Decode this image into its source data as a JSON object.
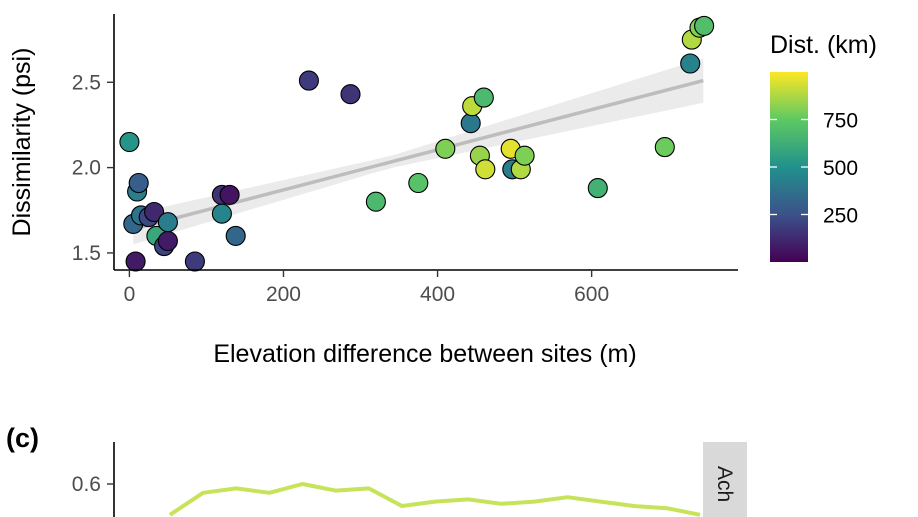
{
  "chart_data": [
    {
      "type": "scatter",
      "xlabel": "Elevation difference between sites (m)",
      "ylabel": "Dissimilarity (psi)",
      "xlim": [
        -20,
        790
      ],
      "ylim": [
        1.4,
        2.9
      ],
      "x_ticks": [
        0,
        200,
        400,
        600
      ],
      "x_tick_labels": [
        "0",
        "200",
        "400",
        "600"
      ],
      "y_ticks": [
        1.5,
        2.0,
        2.5
      ],
      "y_tick_labels": [
        "1.5",
        "2.0",
        "2.5"
      ],
      "grid": false,
      "trend": {
        "type": "linear",
        "x_range": [
          5,
          745
        ],
        "y_start": 1.64,
        "y_end": 2.51,
        "ci_halfwidth_start": 0.09,
        "ci_halfwidth_end": 0.13,
        "line_color": "#bdbdbd",
        "band_color": "#ebebeb"
      },
      "colorbar": {
        "title": "Dist. (km)",
        "range": [
          0,
          1000
        ],
        "ticks": [
          250,
          500,
          750
        ],
        "tick_labels": [
          "250",
          "500",
          "750"
        ],
        "placement": "right",
        "colors": [
          "#440154",
          "#3b528b",
          "#21918c",
          "#5ec962",
          "#fde725"
        ]
      },
      "points": [
        {
          "x": 0,
          "y": 2.15,
          "dist": 520
        },
        {
          "x": 5,
          "y": 1.67,
          "dist": 330
        },
        {
          "x": 10,
          "y": 1.86,
          "dist": 420
        },
        {
          "x": 12,
          "y": 1.91,
          "dist": 300
        },
        {
          "x": 15,
          "y": 1.72,
          "dist": 380
        },
        {
          "x": 8,
          "y": 1.45,
          "dist": 80
        },
        {
          "x": 25,
          "y": 1.71,
          "dist": 220
        },
        {
          "x": 32,
          "y": 1.74,
          "dist": 120
        },
        {
          "x": 35,
          "y": 1.6,
          "dist": 600
        },
        {
          "x": 45,
          "y": 1.54,
          "dist": 200
        },
        {
          "x": 50,
          "y": 1.57,
          "dist": 80
        },
        {
          "x": 50,
          "y": 1.68,
          "dist": 420
        },
        {
          "x": 85,
          "y": 1.45,
          "dist": 180
        },
        {
          "x": 120,
          "y": 1.84,
          "dist": 150
        },
        {
          "x": 120,
          "y": 1.73,
          "dist": 450
        },
        {
          "x": 130,
          "y": 1.84,
          "dist": 60
        },
        {
          "x": 138,
          "y": 1.6,
          "dist": 330
        },
        {
          "x": 233,
          "y": 2.51,
          "dist": 180
        },
        {
          "x": 287,
          "y": 2.43,
          "dist": 160
        },
        {
          "x": 320,
          "y": 1.8,
          "dist": 680
        },
        {
          "x": 375,
          "y": 1.91,
          "dist": 720
        },
        {
          "x": 410,
          "y": 2.11,
          "dist": 800
        },
        {
          "x": 443,
          "y": 2.26,
          "dist": 400
        },
        {
          "x": 445,
          "y": 2.36,
          "dist": 900
        },
        {
          "x": 455,
          "y": 2.07,
          "dist": 840
        },
        {
          "x": 460,
          "y": 2.41,
          "dist": 680
        },
        {
          "x": 462,
          "y": 1.99,
          "dist": 930
        },
        {
          "x": 495,
          "y": 2.11,
          "dist": 960
        },
        {
          "x": 497,
          "y": 1.99,
          "dist": 420
        },
        {
          "x": 508,
          "y": 1.99,
          "dist": 880
        },
        {
          "x": 513,
          "y": 2.07,
          "dist": 800
        },
        {
          "x": 608,
          "y": 1.88,
          "dist": 640
        },
        {
          "x": 695,
          "y": 2.12,
          "dist": 770
        },
        {
          "x": 728,
          "y": 2.61,
          "dist": 440
        },
        {
          "x": 730,
          "y": 2.75,
          "dist": 880
        },
        {
          "x": 740,
          "y": 2.82,
          "dist": 810
        },
        {
          "x": 746,
          "y": 2.83,
          "dist": 700
        }
      ]
    },
    {
      "type": "line",
      "panel_label": "(c)",
      "strip_label": "Ach",
      "ylim": [
        0.3,
        0.7
      ],
      "y_ticks": [
        0.6
      ],
      "y_tick_labels": [
        "0.6"
      ],
      "series": [
        {
          "color": "#c7e35a",
          "x": [
            0,
            1,
            2,
            3,
            4,
            5,
            6,
            7,
            8,
            9,
            10,
            11,
            12,
            13,
            14,
            15,
            16
          ],
          "values": [
            0.46,
            0.56,
            0.58,
            0.56,
            0.6,
            0.57,
            0.58,
            0.5,
            0.52,
            0.53,
            0.51,
            0.52,
            0.54,
            0.52,
            0.5,
            0.49,
            0.46
          ]
        }
      ]
    }
  ]
}
